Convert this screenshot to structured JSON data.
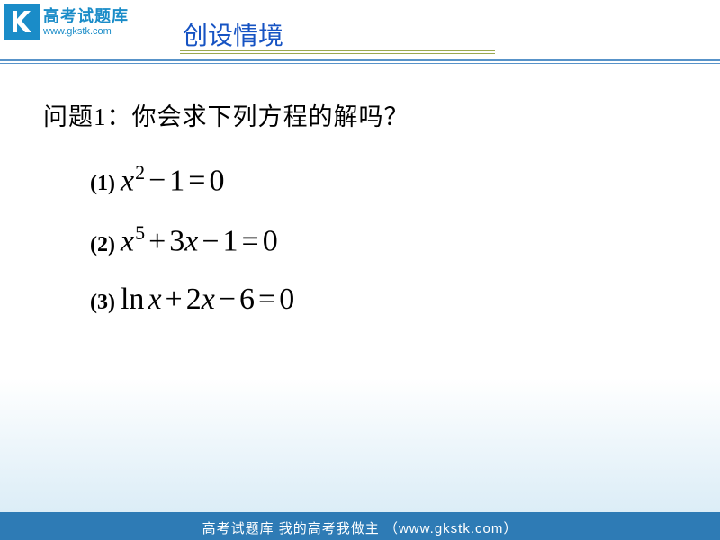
{
  "logo": {
    "cn": "高考试题库",
    "url": "www.gkstk.com",
    "mark_bg": "#1a8cc8",
    "mark_fg": "#ffffff"
  },
  "slide": {
    "title": "创设情境",
    "title_color": "#1653c3",
    "title_fontsize": 28,
    "underline_color": "#9aa84f",
    "full_line_color": "#5893c9"
  },
  "content": {
    "question": "问题1：你会求下列方程的解吗？",
    "question_fontsize": 27,
    "equations": [
      {
        "num": "(1)",
        "html": "<span class='var'>x</span><span class='sup'>2</span><span class='op'>−</span><span class='num'>1</span><span class='op'>=</span><span class='num'>0</span>"
      },
      {
        "num": "(2)",
        "html": "<span class='var'>x</span><span class='sup'>5</span><span class='op'>+</span><span class='num'>3</span><span class='var'>x</span><span class='op'>−</span><span class='num'>1</span><span class='op'>=</span><span class='num'>0</span>"
      },
      {
        "num": "(3)",
        "html": "<span class='fn'>ln</span><span class='var'>x</span><span class='op'>+</span><span class='num'>2</span><span class='var'>x</span><span class='op'>−</span><span class='num'>6</span><span class='op'>=</span><span class='num'>0</span>"
      }
    ],
    "eq_fontsize": 34,
    "eq_num_fontsize": 24
  },
  "footer": {
    "text": "高考试题库  我的高考我做主  （www.gkstk.com）",
    "bg": "#2e7bb5",
    "fg": "#ffffff",
    "fontsize": 15
  },
  "background": {
    "gradient_top": "#ffffff",
    "gradient_bottom": "#d4e9f5"
  }
}
